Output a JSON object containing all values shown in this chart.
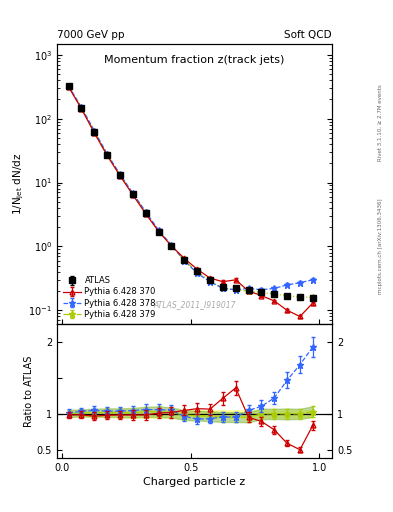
{
  "title_main": "Momentum fraction z(track jets)",
  "top_left_label": "7000 GeV pp",
  "top_right_label": "Soft QCD",
  "right_label_top": "Rivet 3.1.10, ≥ 2.7M events",
  "right_label_bot": "mcplots.cern.ch [arXiv:1306.3436]",
  "watermark": "ATLAS_2011_I919017",
  "ylabel_main": "1/N$_\\mathrm{jet}$ dN/dz",
  "ylabel_ratio": "Ratio to ATLAS",
  "xlabel": "Charged particle z",
  "ylim_main_log": [
    0.06,
    1500
  ],
  "ylim_ratio": [
    0.38,
    2.25
  ],
  "xlim": [
    -0.02,
    1.05
  ],
  "atlas_x": [
    0.025,
    0.075,
    0.125,
    0.175,
    0.225,
    0.275,
    0.325,
    0.375,
    0.425,
    0.475,
    0.525,
    0.575,
    0.625,
    0.675,
    0.725,
    0.775,
    0.825,
    0.875,
    0.925,
    0.975
  ],
  "atlas_y": [
    320,
    145,
    62,
    27,
    13,
    6.5,
    3.3,
    1.7,
    1.0,
    0.62,
    0.41,
    0.3,
    0.23,
    0.22,
    0.21,
    0.19,
    0.18,
    0.17,
    0.16,
    0.155
  ],
  "atlas_yerr": [
    12,
    5,
    2.5,
    1.2,
    0.6,
    0.32,
    0.17,
    0.09,
    0.05,
    0.03,
    0.02,
    0.015,
    0.012,
    0.011,
    0.011,
    0.01,
    0.009,
    0.009,
    0.008,
    0.008
  ],
  "py370_x": [
    0.025,
    0.075,
    0.125,
    0.175,
    0.225,
    0.275,
    0.325,
    0.375,
    0.425,
    0.475,
    0.525,
    0.575,
    0.625,
    0.675,
    0.725,
    0.775,
    0.825,
    0.875,
    0.925,
    0.975
  ],
  "py370_y": [
    315,
    143,
    60,
    26.5,
    12.8,
    6.4,
    3.25,
    1.72,
    1.02,
    0.65,
    0.44,
    0.32,
    0.28,
    0.3,
    0.2,
    0.17,
    0.14,
    0.1,
    0.08,
    0.13
  ],
  "py370_yerr": [
    10,
    5,
    2.2,
    1.0,
    0.5,
    0.28,
    0.15,
    0.08,
    0.05,
    0.03,
    0.022,
    0.016,
    0.014,
    0.015,
    0.01,
    0.009,
    0.007,
    0.005,
    0.004,
    0.007
  ],
  "py378_x": [
    0.025,
    0.075,
    0.125,
    0.175,
    0.225,
    0.275,
    0.325,
    0.375,
    0.425,
    0.475,
    0.525,
    0.575,
    0.625,
    0.675,
    0.725,
    0.775,
    0.825,
    0.875,
    0.925,
    0.975
  ],
  "py378_y": [
    325,
    150,
    65,
    28,
    13.5,
    6.8,
    3.5,
    1.8,
    1.05,
    0.6,
    0.38,
    0.28,
    0.22,
    0.21,
    0.22,
    0.21,
    0.22,
    0.25,
    0.27,
    0.3
  ],
  "py378_yerr": [
    12,
    5.5,
    2.5,
    1.1,
    0.55,
    0.3,
    0.16,
    0.09,
    0.05,
    0.03,
    0.019,
    0.014,
    0.011,
    0.011,
    0.011,
    0.011,
    0.011,
    0.013,
    0.014,
    0.015
  ],
  "py379_x": [
    0.025,
    0.075,
    0.125,
    0.175,
    0.225,
    0.275,
    0.325,
    0.375,
    0.425,
    0.475,
    0.525,
    0.575,
    0.625,
    0.675,
    0.725,
    0.775,
    0.825,
    0.875,
    0.925,
    0.975
  ],
  "py379_y": [
    322,
    147,
    63,
    27.5,
    13.2,
    6.6,
    3.4,
    1.75,
    1.02,
    0.61,
    0.4,
    0.29,
    0.22,
    0.21,
    0.2,
    0.19,
    0.18,
    0.17,
    0.16,
    0.16
  ],
  "py379_yerr": [
    11,
    5,
    2.3,
    1.0,
    0.52,
    0.29,
    0.15,
    0.085,
    0.05,
    0.03,
    0.02,
    0.015,
    0.011,
    0.011,
    0.01,
    0.01,
    0.009,
    0.009,
    0.008,
    0.008
  ],
  "atlas_color": "#000000",
  "py370_color": "#cc0000",
  "py378_color": "#3366ff",
  "py379_color": "#aacc00",
  "band_yellow": "#ffff99",
  "band_green": "#88bb44"
}
